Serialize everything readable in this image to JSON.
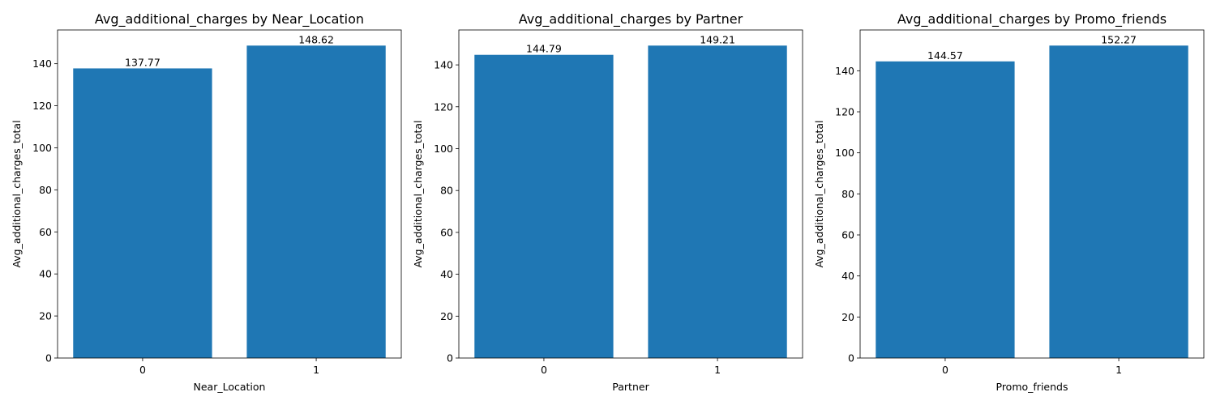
{
  "chart_data": [
    {
      "type": "bar",
      "title": "Avg_additional_charges by Near_Location",
      "xlabel": "Near_Location",
      "ylabel": "Avg_additional_charges_total",
      "categories": [
        "0",
        "1"
      ],
      "values": [
        137.77,
        148.62
      ],
      "data_labels": [
        "137.77",
        "148.62"
      ],
      "ylim": [
        0,
        156.05
      ],
      "yticks": [
        0,
        20,
        40,
        60,
        80,
        100,
        120,
        140
      ],
      "grid": false,
      "bar_color": "#1f77b4"
    },
    {
      "type": "bar",
      "title": "Avg_additional_charges by Partner",
      "xlabel": "Partner",
      "ylabel": "Avg_additional_charges_total",
      "categories": [
        "0",
        "1"
      ],
      "values": [
        144.79,
        149.21
      ],
      "data_labels": [
        "144.79",
        "149.21"
      ],
      "ylim": [
        0,
        156.67
      ],
      "yticks": [
        0,
        20,
        40,
        60,
        80,
        100,
        120,
        140
      ],
      "grid": false,
      "bar_color": "#1f77b4"
    },
    {
      "type": "bar",
      "title": "Avg_additional_charges by Promo_friends",
      "xlabel": "Promo_friends",
      "ylabel": "Avg_additional_charges_total",
      "categories": [
        "0",
        "1"
      ],
      "values": [
        144.57,
        152.27
      ],
      "data_labels": [
        "144.57",
        "152.27"
      ],
      "ylim": [
        0,
        159.88
      ],
      "yticks": [
        0,
        20,
        40,
        60,
        80,
        100,
        120,
        140
      ],
      "grid": false,
      "bar_color": "#1f77b4"
    }
  ]
}
